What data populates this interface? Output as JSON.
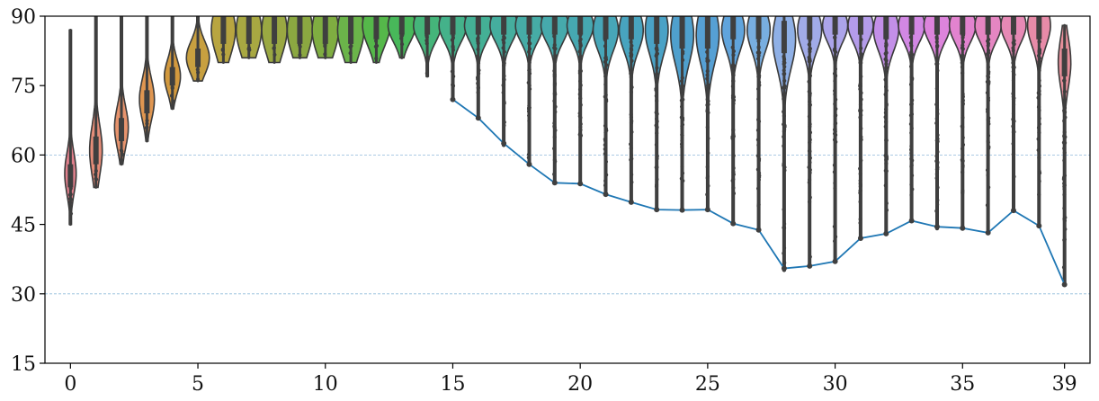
{
  "chart_data": {
    "type": "violin",
    "title": "",
    "xlabel": "",
    "ylabel": "",
    "xlim": [
      -1,
      40
    ],
    "ylim": [
      15,
      90
    ],
    "yticks": [
      15,
      30,
      45,
      60,
      75,
      90
    ],
    "xticks": [
      0,
      5,
      10,
      15,
      20,
      25,
      30,
      35,
      39
    ],
    "grid": "horizontal-dashed",
    "colors": [
      "#e0808c",
      "#e58c78",
      "#e6936d",
      "#df9651",
      "#d2993e",
      "#c8a040",
      "#b8a540",
      "#a8a842",
      "#9aa842",
      "#8ba841",
      "#7fad41",
      "#6bb44a",
      "#55b84a",
      "#48b85a",
      "#45b57a",
      "#44b28a",
      "#44b095",
      "#45ae9e",
      "#46aca6",
      "#46aaac",
      "#46a8b1",
      "#47a6b8",
      "#48a4bf",
      "#4aa2c6",
      "#4fa0cd",
      "#56a0d4",
      "#60a4dc",
      "#78aee0",
      "#8fb0e6",
      "#a1abe8",
      "#aca4ea",
      "#b49cea",
      "#c38fe8",
      "#d288e4",
      "#dd84dc",
      "#e283cf",
      "#e586c2",
      "#e689b5",
      "#e78ba8",
      "#e68f9a"
    ],
    "groups": [
      {
        "x": 0,
        "median": 56,
        "q1": 53,
        "q3": 58,
        "lo": 45,
        "hi": 87,
        "width": 0.5
      },
      {
        "x": 1,
        "median": 61,
        "q1": 58,
        "q3": 64,
        "lo": 53,
        "hi": 90,
        "width": 0.55
      },
      {
        "x": 2,
        "median": 66,
        "q1": 63,
        "q3": 68,
        "lo": 58,
        "hi": 90,
        "width": 0.6
      },
      {
        "x": 3,
        "median": 72,
        "q1": 69,
        "q3": 74,
        "lo": 63,
        "hi": 90,
        "width": 0.65
      },
      {
        "x": 4,
        "median": 77,
        "q1": 75,
        "q3": 79,
        "lo": 70,
        "hi": 90,
        "width": 0.7
      },
      {
        "x": 5,
        "median": 81,
        "q1": 79,
        "q3": 83,
        "lo": 76,
        "hi": 90,
        "width": 1.0
      },
      {
        "x": 6,
        "median": 87,
        "q1": 84,
        "q3": 90,
        "lo": 80,
        "hi": 90,
        "width": 1.05
      },
      {
        "x": 7,
        "median": 87,
        "q1": 84,
        "q3": 90,
        "lo": 81,
        "hi": 90,
        "width": 1.1
      },
      {
        "x": 8,
        "median": 87,
        "q1": 84,
        "q3": 90,
        "lo": 80,
        "hi": 90,
        "width": 1.1
      },
      {
        "x": 9,
        "median": 87,
        "q1": 84,
        "q3": 90,
        "lo": 81,
        "hi": 90,
        "width": 1.1
      },
      {
        "x": 10,
        "median": 87,
        "q1": 84,
        "q3": 90,
        "lo": 81,
        "hi": 90,
        "width": 1.15
      },
      {
        "x": 11,
        "median": 87,
        "q1": 84,
        "q3": 90,
        "lo": 80,
        "hi": 90,
        "width": 1.15
      },
      {
        "x": 12,
        "median": 88,
        "q1": 85,
        "q3": 90,
        "lo": 80,
        "hi": 90,
        "width": 1.2
      },
      {
        "x": 13,
        "median": 88,
        "q1": 86,
        "q3": 90,
        "lo": 81,
        "hi": 90,
        "width": 1.2
      },
      {
        "x": 14,
        "median": 88,
        "q1": 86,
        "q3": 90,
        "lo": 77,
        "hi": 90,
        "width": 1.2
      },
      {
        "x": 15,
        "median": 88,
        "q1": 86,
        "q3": 90,
        "lo": 72,
        "hi": 90,
        "width": 1.2
      },
      {
        "x": 16,
        "median": 88,
        "q1": 86,
        "q3": 90,
        "lo": 68,
        "hi": 90,
        "width": 1.2
      },
      {
        "x": 17,
        "median": 88,
        "q1": 86,
        "q3": 90,
        "lo": 62,
        "hi": 90,
        "width": 1.2
      },
      {
        "x": 18,
        "median": 88,
        "q1": 86,
        "q3": 90,
        "lo": 58,
        "hi": 90,
        "width": 1.2
      },
      {
        "x": 19,
        "median": 88,
        "q1": 86,
        "q3": 90,
        "lo": 54,
        "hi": 90,
        "width": 1.2
      },
      {
        "x": 20,
        "median": 88,
        "q1": 86,
        "q3": 90,
        "lo": 54,
        "hi": 90,
        "width": 1.15
      },
      {
        "x": 21,
        "median": 87,
        "q1": 85,
        "q3": 90,
        "lo": 52,
        "hi": 90,
        "width": 1.1
      },
      {
        "x": 22,
        "median": 87,
        "q1": 85,
        "q3": 90,
        "lo": 50,
        "hi": 90,
        "width": 1.05
      },
      {
        "x": 23,
        "median": 87,
        "q1": 84,
        "q3": 90,
        "lo": 48,
        "hi": 90,
        "width": 1.0
      },
      {
        "x": 24,
        "median": 86,
        "q1": 83,
        "q3": 90,
        "lo": 48,
        "hi": 90,
        "width": 1.0
      },
      {
        "x": 25,
        "median": 86,
        "q1": 83,
        "q3": 90,
        "lo": 48,
        "hi": 90,
        "width": 1.0
      },
      {
        "x": 26,
        "median": 87,
        "q1": 85,
        "q3": 90,
        "lo": 45,
        "hi": 90,
        "width": 1.0
      },
      {
        "x": 27,
        "median": 87,
        "q1": 85,
        "q3": 90,
        "lo": 44,
        "hi": 90,
        "width": 1.0
      },
      {
        "x": 28,
        "median": 85,
        "q1": 82,
        "q3": 89,
        "lo": 35,
        "hi": 90,
        "width": 1.0
      },
      {
        "x": 29,
        "median": 87,
        "q1": 85,
        "q3": 90,
        "lo": 36,
        "hi": 90,
        "width": 1.05
      },
      {
        "x": 30,
        "median": 88,
        "q1": 86,
        "q3": 90,
        "lo": 37,
        "hi": 90,
        "width": 1.1
      },
      {
        "x": 31,
        "median": 88,
        "q1": 86,
        "q3": 90,
        "lo": 42,
        "hi": 90,
        "width": 1.1
      },
      {
        "x": 32,
        "median": 87,
        "q1": 85,
        "q3": 90,
        "lo": 43,
        "hi": 90,
        "width": 1.1
      },
      {
        "x": 33,
        "median": 88,
        "q1": 86,
        "q3": 90,
        "lo": 46,
        "hi": 90,
        "width": 1.15
      },
      {
        "x": 34,
        "median": 88,
        "q1": 86,
        "q3": 90,
        "lo": 44,
        "hi": 90,
        "width": 1.15
      },
      {
        "x": 35,
        "median": 88,
        "q1": 86,
        "q3": 90,
        "lo": 44,
        "hi": 90,
        "width": 1.15
      },
      {
        "x": 36,
        "median": 88,
        "q1": 86,
        "q3": 90,
        "lo": 43,
        "hi": 90,
        "width": 1.15
      },
      {
        "x": 37,
        "median": 88,
        "q1": 86,
        "q3": 90,
        "lo": 48,
        "hi": 90,
        "width": 1.1
      },
      {
        "x": 38,
        "median": 88,
        "q1": 85,
        "q3": 90,
        "lo": 45,
        "hi": 90,
        "width": 1.0
      },
      {
        "x": 39,
        "median": 80,
        "q1": 77,
        "q3": 83,
        "lo": 32,
        "hi": 88,
        "width": 0.55
      }
    ],
    "min_line": {
      "x": [
        15,
        16,
        17,
        18,
        19,
        20,
        21,
        22,
        23,
        24,
        25,
        26,
        27,
        28,
        29,
        30,
        31,
        32,
        33,
        34,
        35,
        36,
        37,
        38,
        39
      ],
      "y": [
        72,
        68,
        62.5,
        58,
        54,
        53.8,
        51.5,
        49.8,
        48.2,
        48.1,
        48.2,
        45.2,
        43.8,
        35.5,
        36,
        37,
        42,
        43,
        45.8,
        44.5,
        44.2,
        43.2,
        48,
        44.7,
        32
      ]
    }
  }
}
